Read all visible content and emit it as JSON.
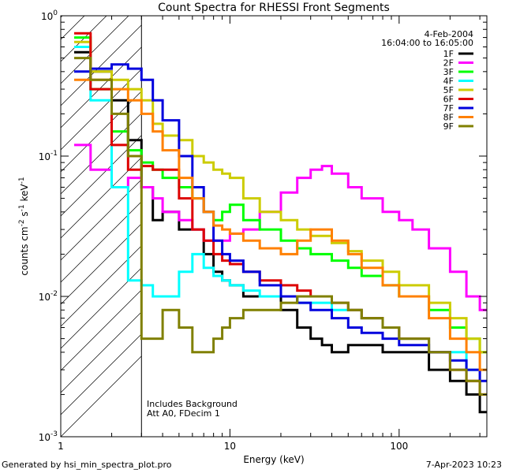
{
  "chart_data": {
    "type": "line",
    "title": "Count Spectra for RHESSI Front Segments",
    "xlabel": "Energy (keV)",
    "ylabel_parts": [
      "counts cm",
      "-2",
      " s",
      "-1",
      " keV",
      "-1"
    ],
    "x_scale": "log",
    "y_scale": "log",
    "xlim": [
      1,
      330
    ],
    "ylim": [
      0.001,
      1
    ],
    "x_ticks": [
      {
        "v": 1,
        "label": "1"
      },
      {
        "v": 10,
        "label": "10"
      },
      {
        "v": 100,
        "label": "100"
      }
    ],
    "y_ticks": [
      {
        "v": 0.001,
        "base": "10",
        "exp": "-3"
      },
      {
        "v": 0.01,
        "base": "10",
        "exp": "-2"
      },
      {
        "v": 0.1,
        "base": "10",
        "exp": "-1"
      },
      {
        "v": 1,
        "base": "10",
        "exp": "0"
      }
    ],
    "date": "4-Feb-2004",
    "time_range": "16:04:00 to 16:05:00",
    "annotations": [
      "Includes Background",
      "Att A0, FDecim 1"
    ],
    "hatch_region": [
      1,
      3
    ],
    "series": [
      {
        "name": "1F",
        "color": "#000000",
        "points": [
          [
            1.2,
            0.55
          ],
          [
            1.5,
            0.4
          ],
          [
            2,
            0.25
          ],
          [
            2.5,
            0.13
          ],
          [
            3,
            0.06
          ],
          [
            3.5,
            0.035
          ],
          [
            4,
            0.04
          ],
          [
            5,
            0.03
          ],
          [
            6,
            0.03
          ],
          [
            7,
            0.02
          ],
          [
            8,
            0.015
          ],
          [
            9,
            0.013
          ],
          [
            10,
            0.012
          ],
          [
            12,
            0.01
          ],
          [
            15,
            0.01
          ],
          [
            20,
            0.008
          ],
          [
            25,
            0.006
          ],
          [
            30,
            0.005
          ],
          [
            35,
            0.0045
          ],
          [
            40,
            0.004
          ],
          [
            50,
            0.0045
          ],
          [
            60,
            0.0045
          ],
          [
            80,
            0.004
          ],
          [
            100,
            0.004
          ],
          [
            150,
            0.003
          ],
          [
            200,
            0.0025
          ],
          [
            250,
            0.002
          ],
          [
            300,
            0.0015
          ]
        ]
      },
      {
        "name": "2F",
        "color": "#ff00ff",
        "points": [
          [
            1.2,
            0.12
          ],
          [
            1.5,
            0.08
          ],
          [
            2,
            0.06
          ],
          [
            2.5,
            0.07
          ],
          [
            3,
            0.06
          ],
          [
            3.5,
            0.05
          ],
          [
            4,
            0.04
          ],
          [
            5,
            0.035
          ],
          [
            6,
            0.03
          ],
          [
            7,
            0.025
          ],
          [
            8,
            0.025
          ],
          [
            9,
            0.025
          ],
          [
            10,
            0.028
          ],
          [
            12,
            0.03
          ],
          [
            15,
            0.04
          ],
          [
            20,
            0.055
          ],
          [
            25,
            0.07
          ],
          [
            30,
            0.08
          ],
          [
            35,
            0.085
          ],
          [
            40,
            0.075
          ],
          [
            50,
            0.06
          ],
          [
            60,
            0.05
          ],
          [
            80,
            0.04
          ],
          [
            100,
            0.035
          ],
          [
            120,
            0.03
          ],
          [
            150,
            0.022
          ],
          [
            200,
            0.015
          ],
          [
            250,
            0.01
          ],
          [
            300,
            0.008
          ]
        ]
      },
      {
        "name": "3F",
        "color": "#00ff00",
        "points": [
          [
            1.2,
            0.7
          ],
          [
            1.5,
            0.3
          ],
          [
            2,
            0.15
          ],
          [
            2.5,
            0.11
          ],
          [
            3,
            0.09
          ],
          [
            3.5,
            0.08
          ],
          [
            4,
            0.07
          ],
          [
            5,
            0.06
          ],
          [
            6,
            0.05
          ],
          [
            7,
            0.04
          ],
          [
            8,
            0.035
          ],
          [
            9,
            0.04
          ],
          [
            10,
            0.045
          ],
          [
            12,
            0.035
          ],
          [
            15,
            0.03
          ],
          [
            20,
            0.025
          ],
          [
            25,
            0.022
          ],
          [
            30,
            0.02
          ],
          [
            40,
            0.018
          ],
          [
            50,
            0.016
          ],
          [
            60,
            0.014
          ],
          [
            80,
            0.012
          ],
          [
            100,
            0.01
          ],
          [
            150,
            0.008
          ],
          [
            200,
            0.006
          ],
          [
            250,
            0.005
          ],
          [
            300,
            0.004
          ]
        ]
      },
      {
        "name": "4F",
        "color": "#00ffff",
        "points": [
          [
            1.2,
            0.6
          ],
          [
            1.5,
            0.25
          ],
          [
            2,
            0.06
          ],
          [
            2.5,
            0.013
          ],
          [
            3,
            0.012
          ],
          [
            3.5,
            0.01
          ],
          [
            4,
            0.01
          ],
          [
            5,
            0.015
          ],
          [
            6,
            0.02
          ],
          [
            7,
            0.016
          ],
          [
            8,
            0.014
          ],
          [
            9,
            0.013
          ],
          [
            10,
            0.012
          ],
          [
            12,
            0.011
          ],
          [
            15,
            0.01
          ],
          [
            20,
            0.01
          ],
          [
            25,
            0.009
          ],
          [
            30,
            0.009
          ],
          [
            40,
            0.008
          ],
          [
            50,
            0.008
          ],
          [
            60,
            0.007
          ],
          [
            80,
            0.006
          ],
          [
            100,
            0.005
          ],
          [
            150,
            0.004
          ],
          [
            200,
            0.004
          ],
          [
            250,
            0.003
          ],
          [
            300,
            0.003
          ]
        ]
      },
      {
        "name": "5F",
        "color": "#cccc00",
        "points": [
          [
            1.2,
            0.65
          ],
          [
            1.5,
            0.4
          ],
          [
            2,
            0.35
          ],
          [
            2.5,
            0.3
          ],
          [
            3,
            0.25
          ],
          [
            3.5,
            0.17
          ],
          [
            4,
            0.14
          ],
          [
            5,
            0.13
          ],
          [
            6,
            0.1
          ],
          [
            7,
            0.09
          ],
          [
            8,
            0.08
          ],
          [
            9,
            0.075
          ],
          [
            10,
            0.07
          ],
          [
            12,
            0.05
          ],
          [
            15,
            0.04
          ],
          [
            20,
            0.035
          ],
          [
            25,
            0.03
          ],
          [
            30,
            0.027
          ],
          [
            40,
            0.024
          ],
          [
            50,
            0.021
          ],
          [
            60,
            0.018
          ],
          [
            80,
            0.015
          ],
          [
            100,
            0.012
          ],
          [
            150,
            0.009
          ],
          [
            200,
            0.007
          ],
          [
            250,
            0.005
          ],
          [
            300,
            0.004
          ]
        ]
      },
      {
        "name": "6F",
        "color": "#dd0000",
        "points": [
          [
            1.2,
            0.75
          ],
          [
            1.5,
            0.3
          ],
          [
            2,
            0.12
          ],
          [
            2.5,
            0.08
          ],
          [
            3,
            0.085
          ],
          [
            3.5,
            0.08
          ],
          [
            4,
            0.08
          ],
          [
            5,
            0.05
          ],
          [
            6,
            0.03
          ],
          [
            7,
            0.025
          ],
          [
            8,
            0.02
          ],
          [
            9,
            0.018
          ],
          [
            10,
            0.017
          ],
          [
            12,
            0.015
          ],
          [
            15,
            0.013
          ],
          [
            20,
            0.012
          ],
          [
            25,
            0.011
          ],
          [
            30,
            0.01
          ],
          [
            40,
            0.009
          ],
          [
            50,
            0.008
          ],
          [
            60,
            0.007
          ],
          [
            80,
            0.006
          ],
          [
            100,
            0.005
          ],
          [
            150,
            0.004
          ],
          [
            200,
            0.003
          ],
          [
            250,
            0.0025
          ],
          [
            300,
            0.002
          ]
        ]
      },
      {
        "name": "7F",
        "color": "#0000dd",
        "points": [
          [
            1.2,
            0.4
          ],
          [
            1.5,
            0.42
          ],
          [
            2,
            0.45
          ],
          [
            2.5,
            0.42
          ],
          [
            3,
            0.35
          ],
          [
            3.5,
            0.25
          ],
          [
            4,
            0.18
          ],
          [
            5,
            0.1
          ],
          [
            6,
            0.06
          ],
          [
            7,
            0.04
          ],
          [
            8,
            0.025
          ],
          [
            9,
            0.02
          ],
          [
            10,
            0.018
          ],
          [
            12,
            0.015
          ],
          [
            15,
            0.012
          ],
          [
            20,
            0.01
          ],
          [
            25,
            0.009
          ],
          [
            30,
            0.008
          ],
          [
            40,
            0.007
          ],
          [
            50,
            0.006
          ],
          [
            60,
            0.0055
          ],
          [
            80,
            0.005
          ],
          [
            100,
            0.0045
          ],
          [
            150,
            0.004
          ],
          [
            200,
            0.0035
          ],
          [
            250,
            0.003
          ],
          [
            300,
            0.0025
          ]
        ]
      },
      {
        "name": "8F",
        "color": "#ff8000",
        "points": [
          [
            1.2,
            0.35
          ],
          [
            1.5,
            0.35
          ],
          [
            2,
            0.3
          ],
          [
            2.5,
            0.25
          ],
          [
            3,
            0.2
          ],
          [
            3.5,
            0.15
          ],
          [
            4,
            0.11
          ],
          [
            5,
            0.07
          ],
          [
            6,
            0.05
          ],
          [
            7,
            0.04
          ],
          [
            8,
            0.032
          ],
          [
            9,
            0.03
          ],
          [
            10,
            0.028
          ],
          [
            12,
            0.025
          ],
          [
            15,
            0.022
          ],
          [
            20,
            0.02
          ],
          [
            25,
            0.025
          ],
          [
            30,
            0.03
          ],
          [
            40,
            0.025
          ],
          [
            50,
            0.02
          ],
          [
            60,
            0.016
          ],
          [
            80,
            0.012
          ],
          [
            100,
            0.01
          ],
          [
            150,
            0.007
          ],
          [
            200,
            0.005
          ],
          [
            250,
            0.004
          ],
          [
            300,
            0.003
          ]
        ]
      },
      {
        "name": "9F",
        "color": "#808000",
        "points": [
          [
            1.2,
            0.5
          ],
          [
            1.5,
            0.35
          ],
          [
            2,
            0.2
          ],
          [
            2.5,
            0.1
          ],
          [
            3,
            0.005
          ],
          [
            3.5,
            0.005
          ],
          [
            4,
            0.008
          ],
          [
            5,
            0.006
          ],
          [
            6,
            0.004
          ],
          [
            7,
            0.004
          ],
          [
            8,
            0.005
          ],
          [
            9,
            0.006
          ],
          [
            10,
            0.007
          ],
          [
            12,
            0.008
          ],
          [
            15,
            0.008
          ],
          [
            20,
            0.009
          ],
          [
            25,
            0.01
          ],
          [
            30,
            0.01
          ],
          [
            40,
            0.009
          ],
          [
            50,
            0.008
          ],
          [
            60,
            0.007
          ],
          [
            80,
            0.006
          ],
          [
            100,
            0.005
          ],
          [
            150,
            0.004
          ],
          [
            200,
            0.003
          ],
          [
            250,
            0.0025
          ],
          [
            300,
            0.002
          ]
        ]
      }
    ]
  },
  "footer": {
    "generated_by": "Generated by hsi_min_spectra_plot.pro",
    "timestamp": "7-Apr-2023 10:23"
  }
}
